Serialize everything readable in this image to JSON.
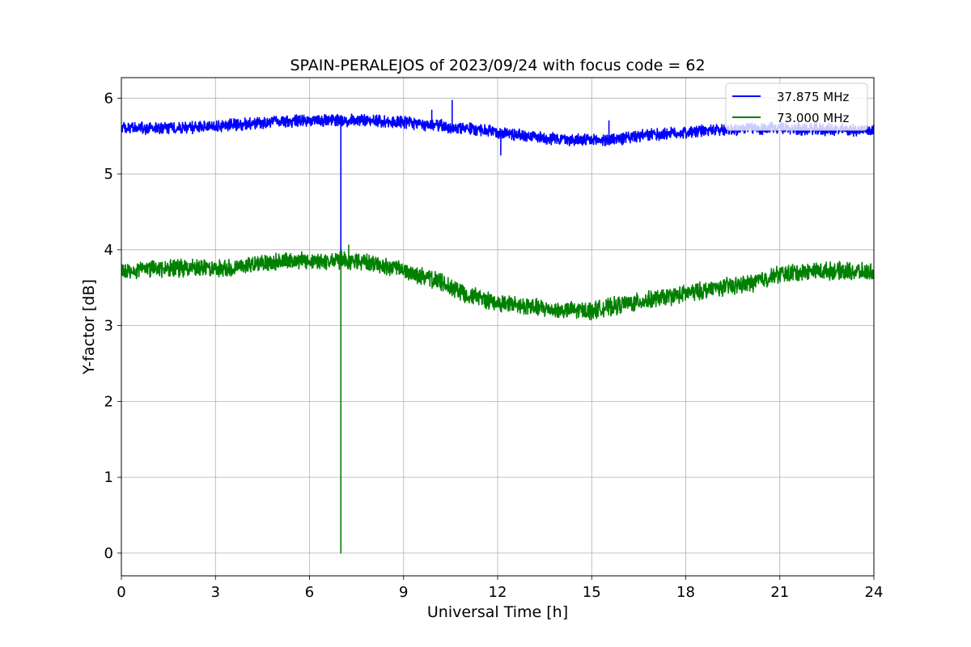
{
  "chart_data": {
    "type": "line",
    "title": "SPAIN-PERALEJOS of 2023/09/24 with focus code = 62",
    "xlabel": "Universal Time [h]",
    "ylabel": "Y-factor [dB]",
    "xlim": [
      0,
      24
    ],
    "ylim": [
      -0.3,
      6.27
    ],
    "xticks": [
      "0",
      "3",
      "6",
      "9",
      "12",
      "15",
      "18",
      "21",
      "24"
    ],
    "yticks": [
      "0",
      "1",
      "2",
      "3",
      "4",
      "5",
      "6"
    ],
    "grid": true,
    "legend_position": "top-right",
    "series": [
      {
        "name": "37.875 MHz",
        "color": "#0000ff",
        "noise_amplitude": 0.07,
        "x": [
          0,
          1,
          2,
          3,
          4,
          5,
          6,
          7,
          8,
          9,
          10,
          11,
          12,
          13,
          14,
          15,
          16,
          17,
          18,
          19,
          20,
          21,
          22,
          23,
          24
        ],
        "y": [
          5.6,
          5.6,
          5.61,
          5.63,
          5.66,
          5.69,
          5.7,
          5.71,
          5.71,
          5.68,
          5.64,
          5.6,
          5.55,
          5.5,
          5.46,
          5.44,
          5.47,
          5.52,
          5.55,
          5.58,
          5.6,
          5.6,
          5.59,
          5.58,
          5.58
        ],
        "spikes": [
          {
            "x": 7.0,
            "y": 3.95
          },
          {
            "x": 10.55,
            "y": 5.97
          },
          {
            "x": 9.9,
            "y": 5.84
          },
          {
            "x": 12.1,
            "y": 5.25
          },
          {
            "x": 15.55,
            "y": 5.7
          }
        ]
      },
      {
        "name": "73.000 MHz",
        "color": "#008000",
        "noise_amplitude": 0.1,
        "x": [
          0,
          1,
          2,
          3,
          4,
          5,
          6,
          7,
          8,
          9,
          10,
          11,
          12,
          13,
          14,
          15,
          16,
          17,
          18,
          19,
          20,
          21,
          22,
          23,
          24
        ],
        "y": [
          3.72,
          3.75,
          3.76,
          3.74,
          3.8,
          3.85,
          3.85,
          3.86,
          3.82,
          3.72,
          3.6,
          3.42,
          3.3,
          3.25,
          3.2,
          3.2,
          3.28,
          3.35,
          3.42,
          3.5,
          3.55,
          3.68,
          3.72,
          3.72,
          3.7
        ],
        "spikes": [
          {
            "x": 7.0,
            "y": 0.0
          },
          {
            "x": 7.25,
            "y": 4.06
          }
        ]
      }
    ]
  }
}
